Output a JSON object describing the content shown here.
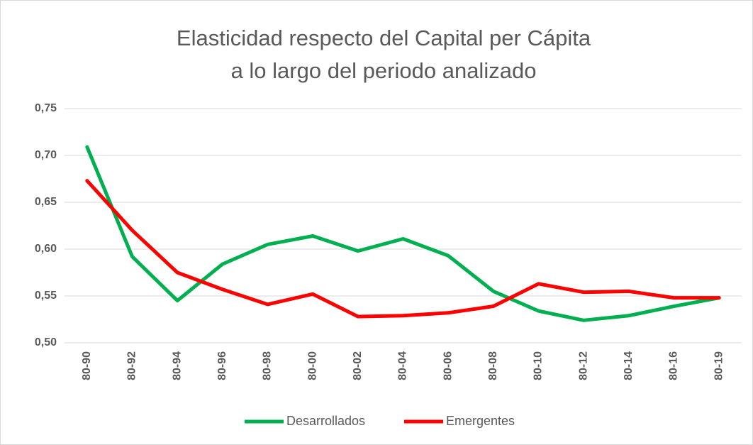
{
  "chart_data": {
    "type": "line",
    "title": [
      "Elasticidad respecto del Capital per Cápita",
      "a lo largo del periodo analizado"
    ],
    "categories": [
      "80-90",
      "80-92",
      "80-94",
      "80-96",
      "80-98",
      "80-00",
      "80-02",
      "80-04",
      "80-06",
      "80-08",
      "80-10",
      "80-12",
      "80-14",
      "80-16",
      "80-19"
    ],
    "series": [
      {
        "name": "Desarrollados",
        "color": "#00b050",
        "values": [
          0.709,
          0.592,
          0.545,
          0.584,
          0.605,
          0.614,
          0.598,
          0.611,
          0.593,
          0.555,
          0.534,
          0.524,
          0.529,
          0.539,
          0.548
        ]
      },
      {
        "name": "Emergentes",
        "color": "#ff0000",
        "values": [
          0.673,
          0.62,
          0.575,
          0.557,
          0.541,
          0.552,
          0.528,
          0.529,
          0.532,
          0.539,
          0.563,
          0.554,
          0.555,
          0.548,
          0.548
        ]
      }
    ],
    "ylim": [
      0.5,
      0.75
    ],
    "yticks": [
      {
        "value": 0.5,
        "label": "0,50"
      },
      {
        "value": 0.55,
        "label": "0,55"
      },
      {
        "value": 0.6,
        "label": "0,60"
      },
      {
        "value": 0.65,
        "label": "0,65"
      },
      {
        "value": 0.7,
        "label": "0,70"
      },
      {
        "value": 0.75,
        "label": "0,75"
      }
    ],
    "grid": true,
    "legend": "bottom"
  }
}
